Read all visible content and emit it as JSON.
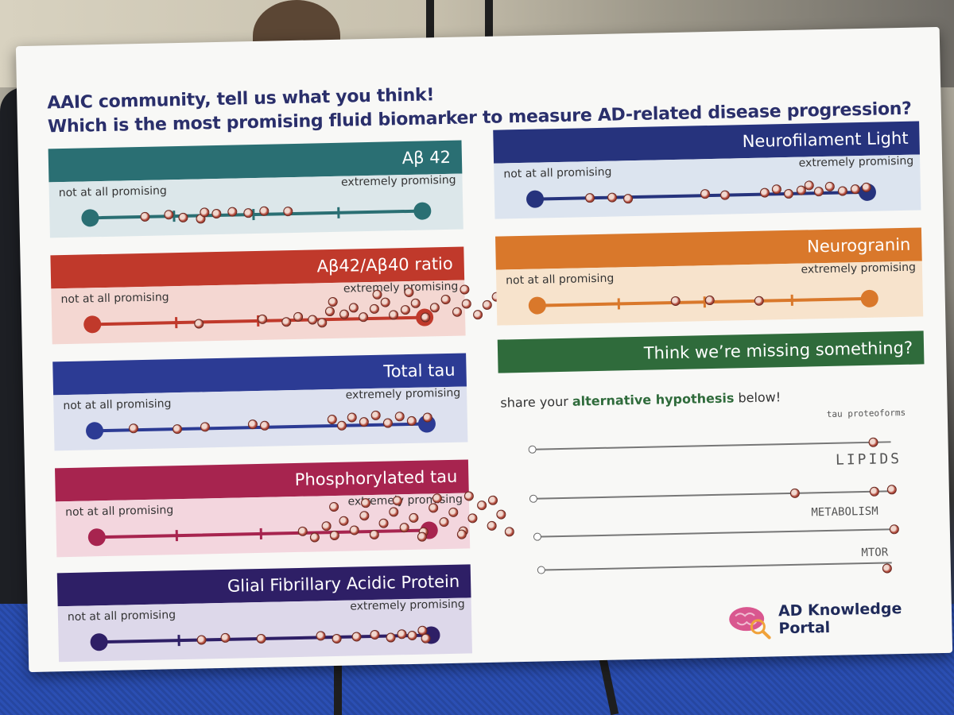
{
  "poster": {
    "title_line1": "AAIC community, tell us what you think!",
    "title_line2": "Which is the most promising fluid biomarker to measure AD-related disease progression?",
    "cards": [
      {
        "name": "Aβ 42",
        "left_label": "not at all promising",
        "right_label": "extremely promising",
        "color": "#2a6f73",
        "light": "#dce7ea"
      },
      {
        "name": "Aβ42/Aβ40 ratio",
        "left_label": "not at all promising",
        "right_label": "extremely promising",
        "color": "#c0392b",
        "light": "#f4d7d2"
      },
      {
        "name": "Total tau",
        "left_label": "not at all promising",
        "right_label": "extremely promising",
        "color": "#2c3b94",
        "light": "#dde1ef"
      },
      {
        "name": "Phosphorylated tau",
        "left_label": "not at all promising",
        "right_label": "extremely promising",
        "color": "#a7244f",
        "light": "#f3d6de"
      },
      {
        "name": "Glial Fibrillary Acidic Protein",
        "left_label": "not at all promising",
        "right_label": "extremely promising",
        "color": "#2e1f66",
        "light": "#ddd8ea"
      },
      {
        "name": "Neurofilament Light",
        "left_label": "not at all promising",
        "right_label": "extremely promising",
        "color": "#26337d",
        "light": "#dce4ef"
      },
      {
        "name": "Neurogranin",
        "left_label": "not at all promising",
        "right_label": "extremely promising",
        "color": "#d9782b",
        "light": "#f7e3cc"
      }
    ],
    "missing": {
      "header": "Think we’re missing something?",
      "share_prefix": "share your ",
      "share_bold": "alternative hypothesis",
      "share_suffix": " below!"
    },
    "handwritten": [
      "tau proteoforms",
      "LIPIDS",
      "METABOLISM",
      "MTOR"
    ],
    "portal": {
      "name": "AD Knowledge Portal",
      "brain_color": "#d9578f",
      "magnifier_color": "#f0a23a"
    }
  }
}
